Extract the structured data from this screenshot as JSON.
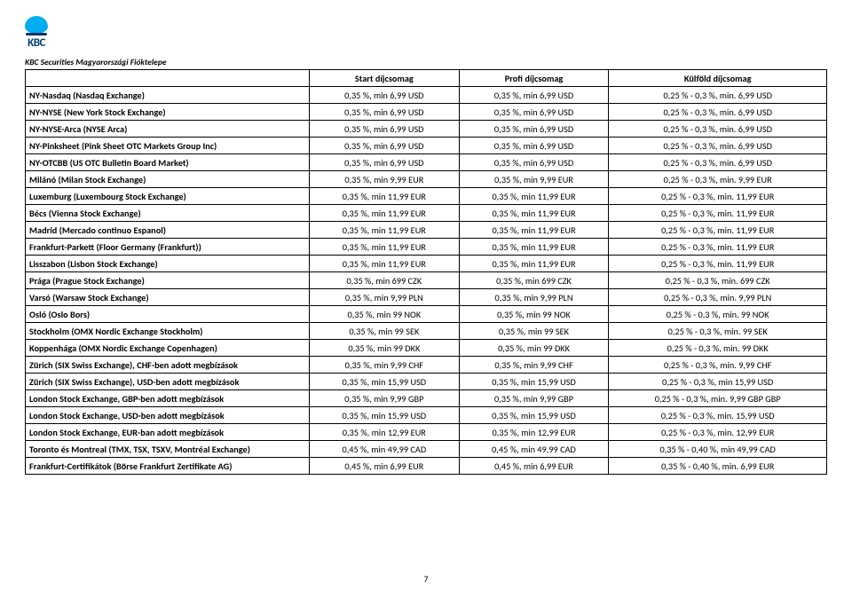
{
  "company": "KBC Securities Magyarországi Fióktelepe",
  "logo_text": "KBC",
  "columns": [
    "",
    "Start díjcsomag",
    "Profi díjcsomag",
    "Külföld díjcsomag"
  ],
  "rows": [
    {
      "name": "NY-Nasdaq (Nasdaq Exchange)",
      "c1": "0,35 %, min 6,99 USD",
      "c2": "0,35 %, min 6,99 USD",
      "c3": "0,25 % - 0,3 %, min. 6,99 USD"
    },
    {
      "name": "NY-NYSE (New York Stock Exchange)",
      "c1": "0,35 %, min 6,99 USD",
      "c2": "0,35 %, min 6,99 USD",
      "c3": "0,25 % - 0,3 %, min. 6,99 USD"
    },
    {
      "name": "NY-NYSE-Arca (NYSE Arca)",
      "c1": "0,35 %, min 6,99 USD",
      "c2": "0,35 %, min 6,99 USD",
      "c3": "0,25 % - 0,3 %, min. 6,99 USD"
    },
    {
      "name": "NY-Pinksheet (Pink Sheet OTC Markets Group Inc)",
      "c1": "0,35 %, min 6,99 USD",
      "c2": "0,35 %, min 6,99 USD",
      "c3": "0,25 % - 0,3 %, min. 6,99 USD"
    },
    {
      "name": "NY-OTCBB (US OTC Bulletin Board Market)",
      "c1": "0,35 %, min 6,99 USD",
      "c2": "0,35 %, min 6,99 USD",
      "c3": "0,25 % - 0,3 %, min. 6,99 USD"
    },
    {
      "name": "Milánó (Milan Stock Exchange)",
      "c1": "0,35 %, min 9,99 EUR",
      "c2": "0,35 %, min 9,99 EUR",
      "c3": "0,25 % - 0,3 %, min. 9,99 EUR"
    },
    {
      "name": "Luxemburg (Luxembourg Stock Exchange)",
      "c1": "0,35 %, min 11,99 EUR",
      "c2": "0,35 %, min 11,99 EUR",
      "c3": "0,25 % - 0,3 %, min. 11,99 EUR"
    },
    {
      "name": "Bécs (Vienna Stock Exchange)",
      "c1": "0,35 %, min 11,99 EUR",
      "c2": "0,35 %, min 11,99 EUR",
      "c3": "0,25 % - 0,3 %, min. 11,99 EUR"
    },
    {
      "name": "Madrid (Mercado continuo Espanol)",
      "c1": "0,35 %, min 11,99 EUR",
      "c2": "0,35 %, min 11,99 EUR",
      "c3": "0,25 % - 0,3 %, min. 11,99 EUR"
    },
    {
      "name": "Frankfurt-Parkett (Floor Germany (Frankfurt))",
      "c1": "0,35 %, min 11,99 EUR",
      "c2": "0,35 %, min 11,99 EUR",
      "c3": "0,25 % - 0,3 %, min. 11,99 EUR"
    },
    {
      "name": "Lisszabon (Lisbon Stock Exchange)",
      "c1": "0,35 %, min 11,99 EUR",
      "c2": "0,35 %, min 11,99 EUR",
      "c3": "0,25 % - 0,3 %, min. 11,99 EUR"
    },
    {
      "name": "Prága (Prague Stock Exchange)",
      "c1": "0,35 %, min 699 CZK",
      "c2": "0,35 %, min 699 CZK",
      "c3": "0,25 % - 0,3 %, min. 699 CZK"
    },
    {
      "name": "Varsó (Warsaw Stock Exchange)",
      "c1": "0,35 %, min 9,99 PLN",
      "c2": "0,35 %, min 9,99 PLN",
      "c3": "0,25 % - 0,3 %, min. 9,99 PLN"
    },
    {
      "name": "Osló (Oslo Bors)",
      "c1": "0,35 %, min 99 NOK",
      "c2": "0,35 %, min 99 NOK",
      "c3": "0,25 % - 0,3 %, min. 99 NOK"
    },
    {
      "name": "Stockholm (OMX Nordic Exchange Stockholm)",
      "c1": "0,35 %, min 99 SEK",
      "c2": "0,35 %, min 99 SEK",
      "c3": "0,25 % - 0,3 %, min. 99 SEK"
    },
    {
      "name": "Koppenhága (OMX Nordic Exchange Copenhagen)",
      "c1": "0,35 %, min 99 DKK",
      "c2": "0,35 %, min 99 DKK",
      "c3": "0,25 % - 0,3 %, min. 99 DKK"
    },
    {
      "name": "Zürich (SIX Swiss Exchange), CHF-ben adott megbízások",
      "c1": "0,35 %, min 9,99 CHF",
      "c2": "0,35 %, min 9,99 CHF",
      "c3": "0,25 % - 0,3 %, min. 9,99 CHF"
    },
    {
      "name": "Zürich (SIX Swiss Exchange), USD-ben adott megbízások",
      "c1": "0,35 %, min 15,99 USD",
      "c2": "0,35 %, min 15,99 USD",
      "c3": "0,25 % - 0,3 %, min 15,99 USD"
    },
    {
      "name": "London Stock Exchange, GBP-ben adott megbízások",
      "c1": "0,35 %, min 9,99 GBP",
      "c2": "0,35 %, min 9,99 GBP",
      "c3": "0,25 % - 0,3 %, min. 9,99 GBP GBP"
    },
    {
      "name": "London Stock Exchange, USD-ben adott megbízások",
      "c1": "0,35 %, min 15,99 USD",
      "c2": "0,35 %, min 15,99 USD",
      "c3": "0,25 % - 0,3 %, min. 15,99 USD"
    },
    {
      "name": "London Stock Exchange, EUR-ban adott megbízások",
      "c1": "0,35 %, min 12,99 EUR",
      "c2": "0,35 %, min 12,99 EUR",
      "c3": "0,25 % - 0,3 %, min. 12,99 EUR"
    },
    {
      "name": "Toronto és Montreal (TMX, TSX, TSXV, Montréal Exchange)",
      "c1": "0,45 %, min 49,99 CAD",
      "c2": "0,45 %, min 49,99 CAD",
      "c3": "0,35 % - 0,40 %, min 49,99 CAD"
    },
    {
      "name": "Frankfurt-Certifikátok (Börse Frankfurt Zertifikate AG)",
      "c1": "0,45 %, min 6,99 EUR",
      "c2": "0,45 %, min 6,99 EUR",
      "c3": "0,35 % - 0,40 %, min. 6,99 EUR"
    }
  ],
  "page_number": "7"
}
